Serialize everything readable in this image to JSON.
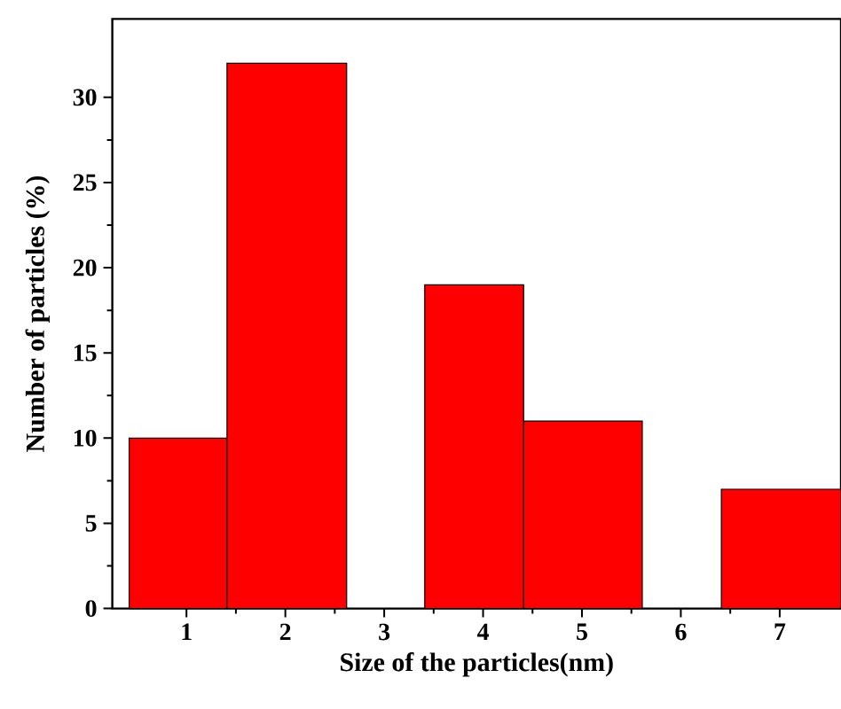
{
  "chart_data": {
    "type": "histogram",
    "xlabel": "Size of the particles(nm)",
    "ylabel": "Number of particles (%)",
    "bins": [
      0.42,
      1.41,
      2.62,
      3.41,
      4.41,
      5.61,
      6.41,
      7.62
    ],
    "values": [
      10,
      32,
      0,
      19,
      11,
      0,
      7
    ],
    "color": "#ff0000",
    "xlim": [
      0.25,
      7.62
    ],
    "ylim": [
      0,
      34.6
    ],
    "xticks": [
      1,
      2,
      3,
      4,
      5,
      6,
      7
    ],
    "yticks": [
      0,
      5,
      10,
      15,
      20,
      25,
      30
    ],
    "grid": false
  }
}
